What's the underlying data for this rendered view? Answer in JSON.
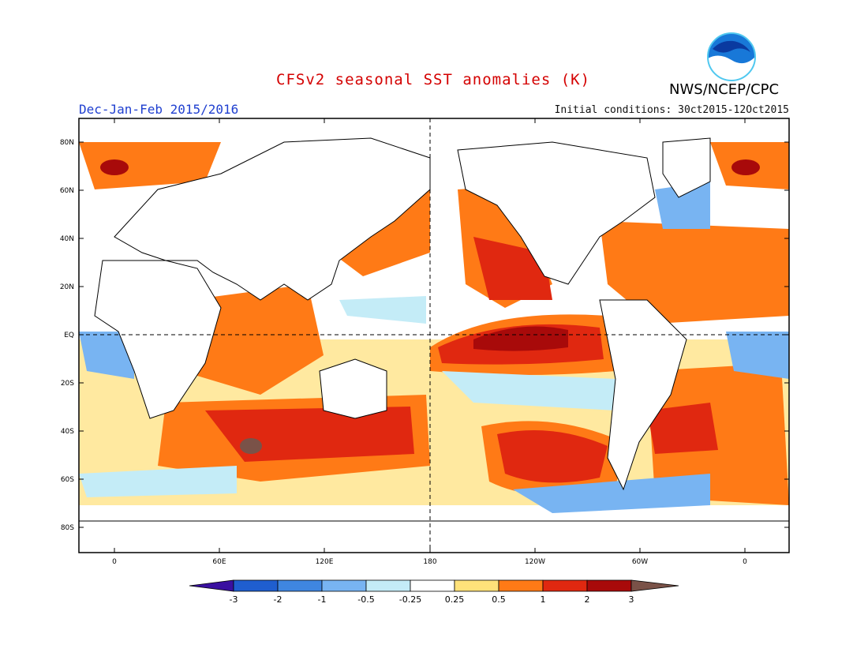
{
  "title": "CFSv2 seasonal SST anomalies (K)",
  "agency": "NWS/NCEP/CPC",
  "logo_text": "NOAA",
  "season": "Dec-Jan-Feb 2015/2016",
  "initial_conditions": "Initial conditions: 30ct2015-12Oct2015",
  "lat_labels": [
    "80N",
    "60N",
    "40N",
    "20N",
    "EQ",
    "20S",
    "40S",
    "60S",
    "80S"
  ],
  "lon_labels": [
    "0",
    "60E",
    "120E",
    "180",
    "120W",
    "60W",
    "0"
  ],
  "colorbar": {
    "labels": [
      "-3",
      "-2",
      "-1",
      "-0.5",
      "-0.25",
      "0.25",
      "0.5",
      "1",
      "2",
      "3"
    ],
    "colors": [
      "#3a10a0",
      "#1f5ecf",
      "#3f86e0",
      "#78b4f2",
      "#c4ecf7",
      "#ffffff",
      "#ffe27a",
      "#ff7a16",
      "#e02810",
      "#a80a0a",
      "#7a5248"
    ]
  }
}
